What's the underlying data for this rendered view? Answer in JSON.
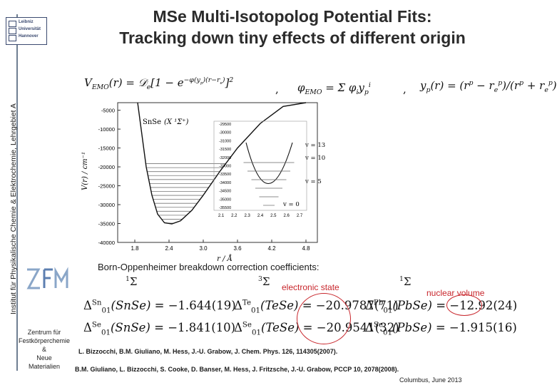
{
  "sidebar": {
    "institute": "Institut für Physikalische Chemie & Elektrochemie, Lehrgebiet A"
  },
  "logo": {
    "line1": "Leibniz",
    "line2": "Universität",
    "line3": "Hannover"
  },
  "title": {
    "line1": "MSe Multi-Isotopolog Potential Fits:",
    "line2": "Tracking down tiny effects of different origin"
  },
  "equations": {
    "vemo_lhs": "V",
    "vemo_sub": "EMO",
    "phi_lhs": "φ",
    "phi_sub": "EMO",
    "yp_lhs": "y",
    "yp_sub": "p"
  },
  "chart_data": {
    "type": "line",
    "ylabel": "V(r) / cm⁻¹",
    "xlabel": "r / Å",
    "xticks": [
      "1.8",
      "2.4",
      "3.0",
      "3.6",
      "4.2",
      "4.8"
    ],
    "yticks": [
      "-5000",
      "-10000",
      "-15000",
      "-20000",
      "-25000",
      "-30000",
      "-35000",
      "-40000"
    ],
    "xlim": [
      1.5,
      5.0
    ],
    "ylim": [
      -40000,
      -3000
    ],
    "labels": {
      "molecule": "SnSe",
      "state": "(X ¹Σ⁺)",
      "v13": "v = 13",
      "v10": "v = 10",
      "v5": "v = 5",
      "v0": "v = 0"
    },
    "inset": {
      "yticks": [
        "-29500",
        "-30000",
        "-31000",
        "-31500",
        "-32000",
        "-33000",
        "-33500",
        "-34000",
        "-34500",
        "-35000",
        "-35500"
      ],
      "xticks": [
        "2.1",
        "2.2",
        "2.3",
        "2.4",
        "2.5",
        "2.6",
        "2.7"
      ]
    },
    "series": [
      {
        "name": "",
        "x": [
          1.85,
          2.0,
          2.1,
          2.2,
          2.32,
          2.45,
          2.6,
          2.8,
          3.0,
          3.3,
          3.6,
          4.0,
          4.4,
          4.8
        ],
        "y": [
          -3000,
          -20000,
          -27500,
          -32500,
          -34800,
          -35100,
          -34300,
          -31500,
          -27500,
          -21000,
          -15000,
          -8500,
          -4000,
          -1500
        ]
      }
    ]
  },
  "bo": {
    "heading": "Born-Oppenheimer breakdown correction coefficients:",
    "sigma": "Σ",
    "sup1": "1",
    "sup3": "3",
    "electronic_label": "electronic state",
    "nuclear_label": "nuclear volume",
    "row1": [
      {
        "delta": "Δ",
        "sup": "Sn",
        "sub": "01",
        "mol": "(SnSe)",
        "val": " = −1.644(19)"
      },
      {
        "delta": "Δ",
        "sup": "Te",
        "sub": "01",
        "mol": "(TeSe)",
        "val": " = −20.9787(71)"
      },
      {
        "delta": "Δ",
        "sup": "Pb",
        "sub": "01",
        "mol": "(PbSe)",
        "val": " = −12.92(24)"
      }
    ],
    "row2": [
      {
        "delta": "Δ",
        "sup": "Se",
        "sub": "01",
        "mol": "(SnSe)",
        "val": " = −1.841(10)"
      },
      {
        "delta": "Δ",
        "sup": "Se",
        "sub": "01",
        "mol": "(TeSe)",
        "val": " = −20.9541(32)"
      },
      {
        "delta": "Δ",
        "sup": "Se",
        "sub": "01",
        "mol": "(PbSe)",
        "val": " = −1.915(16)"
      }
    ]
  },
  "zfm": {
    "line1": "Zentrum für",
    "line2": "Festkörperchemie",
    "line3": "&",
    "line4": "Neue",
    "line5": "Materialien"
  },
  "references": {
    "ref1": "L. Bizzocchi, B.M. Giuliano, M. Hess, J.-U. Grabow, J. Chem. Phys. 126, 114305(2007).",
    "ref2": "B.M. Giuliano, L. Bizzocchi, S. Cooke, D. Banser, M. Hess, J. Fritzsche, J.-U. Grabow, PCCP 10, 2078(2008)."
  },
  "footer": "Columbus, June 2013"
}
